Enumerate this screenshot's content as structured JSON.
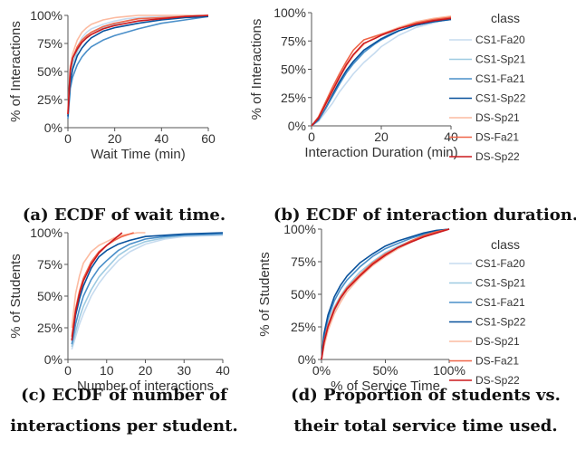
{
  "colors": {
    "CS1-Fa20": "#c6dbef",
    "CS1-Sp21": "#9ecae1",
    "CS1-Fa21": "#4a8fc9",
    "CS1-Sp22": "#08519c",
    "DS-Sp21": "#fcbba1",
    "DS-Fa21": "#ef6548",
    "DS-Sp22": "#cb181d"
  },
  "chart_data": [
    {
      "type": "line",
      "caption": "(a) ECDF of wait time.",
      "xlabel": "Wait Time (min)",
      "ylabel": "% of Interactions",
      "xlim": [
        0,
        60
      ],
      "ylim": [
        0,
        100
      ],
      "xticks": [
        "0",
        "20",
        "40",
        "60"
      ],
      "yticks": [
        "0%",
        "25%",
        "50%",
        "75%",
        "100%"
      ],
      "legend": null,
      "series": [
        {
          "name": "CS1-Fa20",
          "x": [
            0,
            1,
            2,
            4,
            6,
            8,
            10,
            15,
            20,
            25,
            30,
            40,
            50,
            60
          ],
          "y": [
            10,
            48,
            60,
            72,
            80,
            85,
            88,
            92,
            95,
            97,
            98,
            99,
            100,
            100
          ]
        },
        {
          "name": "CS1-Sp21",
          "x": [
            0,
            1,
            2,
            4,
            6,
            8,
            10,
            15,
            20,
            25,
            30,
            40,
            50,
            60
          ],
          "y": [
            10,
            45,
            57,
            68,
            76,
            81,
            85,
            89,
            92,
            95,
            97,
            98,
            99,
            100
          ]
        },
        {
          "name": "CS1-Fa21",
          "x": [
            0,
            1,
            2,
            4,
            6,
            8,
            10,
            15,
            20,
            25,
            30,
            40,
            50,
            60
          ],
          "y": [
            8,
            35,
            45,
            56,
            63,
            68,
            72,
            78,
            82,
            85,
            88,
            93,
            96,
            99
          ]
        },
        {
          "name": "CS1-Sp22",
          "x": [
            0,
            1,
            2,
            4,
            6,
            8,
            10,
            15,
            20,
            25,
            30,
            40,
            50,
            60
          ],
          "y": [
            10,
            40,
            52,
            64,
            71,
            76,
            80,
            86,
            89,
            91,
            93,
            96,
            98,
            99
          ]
        },
        {
          "name": "DS-Sp21",
          "x": [
            0,
            1,
            2,
            4,
            6,
            8,
            10,
            15,
            20,
            25,
            30,
            40,
            50,
            60
          ],
          "y": [
            15,
            55,
            66,
            78,
            85,
            89,
            92,
            96,
            98,
            99,
            100,
            100,
            100,
            100
          ]
        },
        {
          "name": "DS-Fa21",
          "x": [
            0,
            1,
            2,
            4,
            6,
            8,
            10,
            15,
            20,
            25,
            30,
            40,
            50,
            60
          ],
          "y": [
            12,
            50,
            62,
            72,
            78,
            82,
            85,
            90,
            93,
            95,
            97,
            98,
            99,
            100
          ]
        },
        {
          "name": "DS-Sp22",
          "x": [
            0,
            1,
            2,
            4,
            6,
            8,
            10,
            15,
            20,
            25,
            30,
            40,
            50,
            60
          ],
          "y": [
            12,
            52,
            62,
            70,
            76,
            80,
            83,
            88,
            91,
            93,
            95,
            97,
            99,
            100
          ]
        }
      ]
    },
    {
      "type": "line",
      "caption": "(b) ECDF of interaction duration.",
      "xlabel": "Interaction Duration (min)",
      "ylabel": "% of Interactions",
      "xlim": [
        0,
        40
      ],
      "ylim": [
        0,
        100
      ],
      "xticks": [
        "0",
        "20",
        "40"
      ],
      "yticks": [
        "0%",
        "25%",
        "50%",
        "75%",
        "100%"
      ],
      "legend": {
        "title": "class",
        "position": "right"
      },
      "series": [
        {
          "name": "CS1-Fa20",
          "x": [
            0,
            2,
            4,
            6,
            8,
            10,
            12,
            15,
            18,
            20,
            25,
            30,
            35,
            40
          ],
          "y": [
            0,
            4,
            12,
            20,
            30,
            38,
            46,
            56,
            64,
            70,
            80,
            87,
            91,
            95
          ]
        },
        {
          "name": "CS1-Sp21",
          "x": [
            0,
            2,
            4,
            6,
            8,
            10,
            12,
            15,
            18,
            20,
            25,
            30,
            35,
            40
          ],
          "y": [
            0,
            6,
            16,
            26,
            37,
            47,
            55,
            65,
            73,
            77,
            86,
            91,
            94,
            96
          ]
        },
        {
          "name": "CS1-Fa21",
          "x": [
            0,
            2,
            4,
            6,
            8,
            10,
            12,
            15,
            18,
            20,
            25,
            30,
            35,
            40
          ],
          "y": [
            0,
            5,
            15,
            26,
            37,
            47,
            55,
            65,
            72,
            76,
            84,
            89,
            92,
            94
          ]
        },
        {
          "name": "CS1-Sp22",
          "x": [
            0,
            2,
            4,
            6,
            8,
            10,
            12,
            15,
            18,
            20,
            25,
            30,
            35,
            40
          ],
          "y": [
            0,
            6,
            17,
            28,
            39,
            49,
            57,
            67,
            73,
            77,
            84,
            89,
            92,
            94
          ]
        },
        {
          "name": "DS-Sp21",
          "x": [
            0,
            2,
            4,
            6,
            8,
            10,
            12,
            15,
            18,
            20,
            25,
            30,
            35,
            40
          ],
          "y": [
            0,
            7,
            18,
            30,
            42,
            53,
            62,
            72,
            78,
            81,
            87,
            92,
            95,
            97
          ]
        },
        {
          "name": "DS-Fa21",
          "x": [
            0,
            2,
            4,
            6,
            8,
            10,
            12,
            15,
            18,
            20,
            25,
            30,
            35,
            40
          ],
          "y": [
            0,
            8,
            21,
            34,
            46,
            57,
            67,
            76,
            79,
            81,
            86,
            91,
            94,
            96
          ]
        },
        {
          "name": "DS-Sp22",
          "x": [
            0,
            2,
            4,
            6,
            8,
            10,
            12,
            15,
            18,
            20,
            25,
            30,
            35,
            40
          ],
          "y": [
            0,
            7,
            19,
            31,
            43,
            54,
            63,
            73,
            77,
            80,
            86,
            90,
            93,
            95
          ]
        }
      ]
    },
    {
      "type": "line",
      "caption": "(c) ECDF of number of interactions per student.",
      "caption_lines": [
        "(c) ECDF of number of",
        "interactions per student."
      ],
      "xlabel": "Number of interactions",
      "ylabel": "% of Students",
      "xlim": [
        0,
        40
      ],
      "ylim": [
        0,
        100
      ],
      "xticks": [
        "0",
        "10",
        "20",
        "30",
        "40"
      ],
      "yticks": [
        "0%",
        "25%",
        "50%",
        "75%",
        "100%"
      ],
      "legend": null,
      "series": [
        {
          "name": "CS1-Fa20",
          "x": [
            1,
            2,
            3,
            4,
            6,
            8,
            10,
            13,
            16,
            20,
            25,
            30,
            40
          ],
          "y": [
            8,
            18,
            28,
            36,
            50,
            60,
            68,
            78,
            85,
            91,
            95,
            97,
            98
          ]
        },
        {
          "name": "CS1-Sp21",
          "x": [
            1,
            2,
            3,
            4,
            6,
            8,
            10,
            13,
            16,
            20,
            25,
            30,
            40
          ],
          "y": [
            10,
            22,
            33,
            42,
            55,
            65,
            72,
            82,
            88,
            93,
            96,
            98,
            99
          ]
        },
        {
          "name": "CS1-Fa21",
          "x": [
            1,
            2,
            3,
            4,
            6,
            8,
            10,
            13,
            16,
            20,
            25,
            30,
            40
          ],
          "y": [
            12,
            28,
            40,
            50,
            63,
            72,
            78,
            86,
            91,
            95,
            97,
            98,
            99
          ]
        },
        {
          "name": "CS1-Sp22",
          "x": [
            1,
            2,
            3,
            4,
            6,
            8,
            10,
            13,
            16,
            20,
            25,
            30,
            40
          ],
          "y": [
            15,
            35,
            48,
            58,
            72,
            81,
            86,
            91,
            94,
            97,
            98,
            99,
            100
          ]
        },
        {
          "name": "DS-Sp21",
          "x": [
            1,
            2,
            3,
            4,
            6,
            8,
            10,
            12,
            14,
            16,
            18,
            20
          ],
          "y": [
            25,
            52,
            66,
            76,
            85,
            90,
            93,
            96,
            98,
            99,
            100,
            100
          ]
        },
        {
          "name": "DS-Fa21",
          "x": [
            1,
            2,
            3,
            4,
            6,
            8,
            10,
            12,
            14,
            16,
            17
          ],
          "y": [
            18,
            40,
            54,
            64,
            77,
            85,
            90,
            94,
            97,
            99,
            100
          ]
        },
        {
          "name": "DS-Sp22",
          "x": [
            1,
            2,
            3,
            4,
            6,
            8,
            10,
            12,
            14
          ],
          "y": [
            15,
            38,
            52,
            62,
            75,
            84,
            90,
            95,
            100
          ]
        }
      ]
    },
    {
      "type": "line",
      "caption": "(d) Proportion of students vs. their total service time used.",
      "caption_lines": [
        "(d) Proportion of students vs.",
        "their total service time used."
      ],
      "xlabel": "% of Service Time",
      "ylabel": "% of Students",
      "xlim": [
        0,
        100
      ],
      "ylim": [
        0,
        100
      ],
      "xticks": [
        "0%",
        "50%",
        "100%"
      ],
      "yticks": [
        "0%",
        "25%",
        "50%",
        "75%",
        "100%"
      ],
      "legend": {
        "title": "class",
        "position": "right"
      },
      "series": [
        {
          "name": "CS1-Fa20",
          "x": [
            0,
            2,
            5,
            10,
            15,
            20,
            30,
            40,
            50,
            60,
            70,
            80,
            90,
            100
          ],
          "y": [
            0,
            12,
            24,
            36,
            45,
            52,
            63,
            72,
            79,
            85,
            90,
            94,
            97,
            100
          ]
        },
        {
          "name": "CS1-Sp21",
          "x": [
            0,
            2,
            5,
            10,
            15,
            20,
            30,
            40,
            50,
            60,
            70,
            80,
            90,
            100
          ],
          "y": [
            0,
            15,
            27,
            40,
            49,
            56,
            67,
            75,
            82,
            87,
            91,
            95,
            98,
            100
          ]
        },
        {
          "name": "CS1-Fa21",
          "x": [
            0,
            2,
            5,
            10,
            15,
            20,
            30,
            40,
            50,
            60,
            70,
            80,
            90,
            100
          ],
          "y": [
            0,
            18,
            31,
            45,
            54,
            61,
            71,
            79,
            85,
            89,
            93,
            96,
            98,
            100
          ]
        },
        {
          "name": "CS1-Sp22",
          "x": [
            0,
            2,
            5,
            10,
            15,
            20,
            30,
            40,
            50,
            60,
            70,
            80,
            90,
            100
          ],
          "y": [
            0,
            20,
            34,
            48,
            57,
            64,
            74,
            81,
            87,
            91,
            94,
            97,
            99,
            100
          ]
        },
        {
          "name": "DS-Sp21",
          "x": [
            0,
            2,
            5,
            10,
            15,
            20,
            30,
            40,
            50,
            60,
            70,
            80,
            90,
            100
          ],
          "y": [
            0,
            10,
            22,
            35,
            44,
            52,
            63,
            72,
            79,
            85,
            90,
            94,
            97,
            100
          ]
        },
        {
          "name": "DS-Fa21",
          "x": [
            0,
            2,
            5,
            10,
            15,
            20,
            30,
            40,
            50,
            60,
            70,
            80,
            90,
            100
          ],
          "y": [
            0,
            14,
            26,
            39,
            48,
            55,
            65,
            74,
            81,
            86,
            91,
            95,
            98,
            100
          ]
        },
        {
          "name": "DS-Sp22",
          "x": [
            0,
            2,
            5,
            10,
            15,
            20,
            30,
            40,
            50,
            60,
            70,
            80,
            90,
            100
          ],
          "y": [
            0,
            13,
            25,
            38,
            47,
            54,
            64,
            73,
            80,
            86,
            90,
            94,
            97,
            100
          ]
        }
      ]
    }
  ]
}
